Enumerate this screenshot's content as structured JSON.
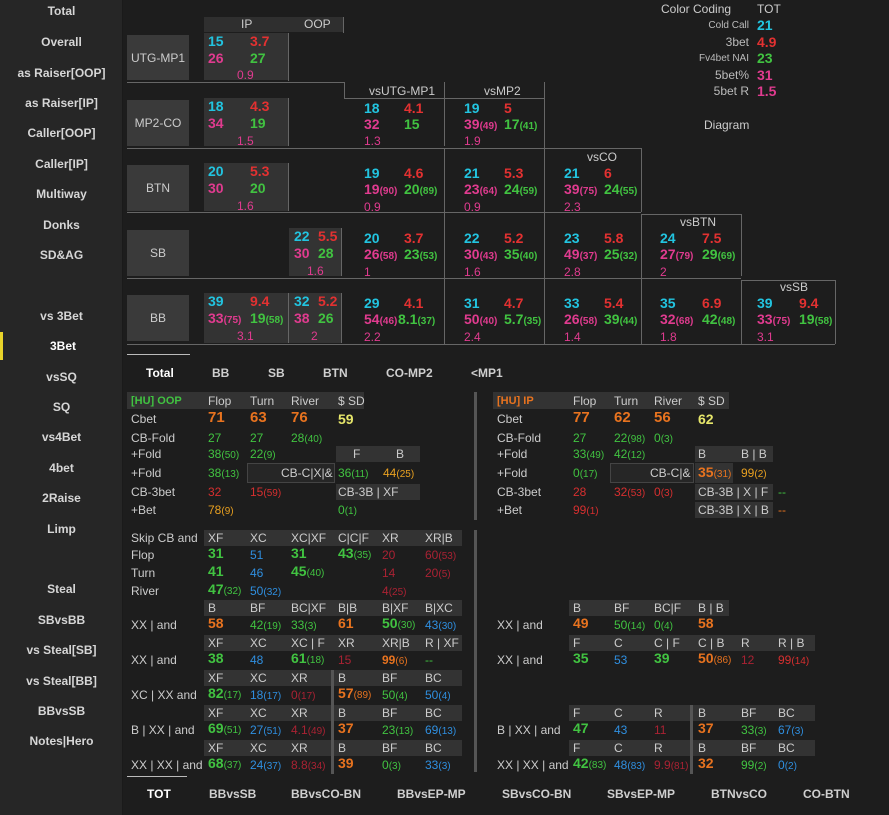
{
  "sidebar": {
    "items": [
      "Total",
      "Overall",
      "as Raiser[OOP]",
      "as Raiser[IP]",
      "Caller[OOP]",
      "Caller[IP]",
      "Multiway",
      "Donks",
      "SD&AG",
      "vs 3Bet",
      "3Bet",
      "vsSQ",
      "SQ",
      "vs4Bet",
      "4bet",
      "2Raise",
      "Limp",
      "Steal",
      "SBvsBB",
      "vs Steal[SB]",
      "vs Steal[BB]",
      "BBvsSB",
      "Notes|Hero"
    ]
  },
  "grid": {
    "ip": "IP",
    "oop": "OOP",
    "rows": [
      {
        "pos": "UTG-MP1",
        "a": "15",
        "b": "3.7",
        "c": "26",
        "d": "27",
        "e": "0.9"
      },
      {
        "pos": "MP2-CO",
        "a": "18",
        "b": "4.3",
        "c": "34",
        "d": "19",
        "e": "1.5"
      },
      {
        "pos": "BTN",
        "a": "20",
        "b": "5.3",
        "c": "30",
        "d": "20",
        "e": "1.6"
      },
      {
        "pos": "SB",
        "a": "22",
        "b": "5.5",
        "c": "30",
        "d": "28",
        "e": "1.6"
      },
      {
        "pos": "BB",
        "a": "39",
        "b": "9.4",
        "c": "33",
        "c2": "(75)",
        "d": "19",
        "d2": "(58)",
        "e": "3.1",
        "f": "32",
        "g": "5.2",
        "h": "38",
        "i": "26",
        "j": "2"
      }
    ],
    "vs_headers": [
      "vsUTG-MP1",
      "vsMP2",
      "vsCO",
      "vsBTN",
      "vsSB"
    ],
    "mp2co": [
      {
        "a": "18",
        "b": "4.1",
        "c": "32",
        "d": "15",
        "e": "1.3"
      },
      {
        "a": "19",
        "b": "5",
        "c": "39",
        "c2": "(49)",
        "d": "17",
        "d2": "(41)",
        "e": "1.9"
      }
    ],
    "btn": [
      {
        "a": "19",
        "b": "4.6",
        "c": "19",
        "c2": "(90)",
        "d": "20",
        "d2": "(89)",
        "e": "0.9"
      },
      {
        "a": "21",
        "b": "5.3",
        "c": "23",
        "c2": "(64)",
        "d": "24",
        "d2": "(59)",
        "e": "0.9"
      },
      {
        "a": "21",
        "b": "6",
        "c": "39",
        "c2": "(75)",
        "d": "24",
        "d2": "(55)",
        "e": "2.3"
      }
    ],
    "sb": [
      {
        "a": "20",
        "b": "3.7",
        "c": "26",
        "c2": "(58)",
        "d": "23",
        "d2": "(53)",
        "e": "1"
      },
      {
        "a": "22",
        "b": "5.2",
        "c": "30",
        "c2": "(43)",
        "d": "35",
        "d2": "(40)",
        "e": "1.6"
      },
      {
        "a": "23",
        "b": "5.8",
        "c": "49",
        "c2": "(37)",
        "d": "25",
        "d2": "(32)",
        "e": "2.8"
      },
      {
        "a": "24",
        "b": "7.5",
        "c": "27",
        "c2": "(79)",
        "d": "29",
        "d2": "(69)",
        "e": "2"
      }
    ],
    "bb": [
      {
        "a": "29",
        "b": "4.1",
        "c": "54",
        "c2": "(46)",
        "d": "8.1",
        "d2": "(37)",
        "e": "2.2"
      },
      {
        "a": "31",
        "b": "4.7",
        "c": "50",
        "c2": "(40)",
        "d": "5.7",
        "d2": "(35)",
        "e": "2.4"
      },
      {
        "a": "33",
        "b": "5.4",
        "c": "26",
        "c2": "(58)",
        "d": "39",
        "d2": "(44)",
        "e": "1.4"
      },
      {
        "a": "35",
        "b": "6.9",
        "c": "32",
        "c2": "(68)",
        "d": "42",
        "d2": "(48)",
        "e": "1.8"
      },
      {
        "a": "39",
        "b": "9.4",
        "c": "33",
        "c2": "(75)",
        "d": "19",
        "d2": "(58)",
        "e": "3.1"
      }
    ]
  },
  "legend": {
    "title": "Color Coding",
    "tot": "TOT",
    "items": [
      {
        "k": "Cold Call",
        "v": "21"
      },
      {
        "k": "3bet",
        "v": "4.9"
      },
      {
        "k": "Fv4bet NAI",
        "v": "23"
      },
      {
        "k": "5bet%",
        "v": "31"
      },
      {
        "k": "5bet R",
        "v": "1.5"
      }
    ],
    "diagram": "Diagram"
  },
  "tabs": [
    "Total",
    "BB",
    "SB",
    "BTN",
    "CO-MP2",
    "<MP1"
  ],
  "bottom_tabs": [
    "TOT",
    "BBvsSB",
    "BBvsCO-BN",
    "BBvsEP-MP",
    "SBvsCO-BN",
    "SBvsEP-MP",
    "BTNvsCO",
    "CO-BTN"
  ],
  "oop": {
    "title": "[HU] OOP",
    "h": [
      "Flop",
      "Turn",
      "River",
      "$ SD"
    ],
    "cbet": [
      "71",
      "63",
      "76",
      "59"
    ],
    "cbfold": [
      "27",
      "27",
      "28",
      "(40)"
    ],
    "pfold1": [
      "38",
      "(50)",
      "22",
      "(9)"
    ],
    "pfold2": [
      "38",
      "(13)"
    ],
    "fb": [
      "F",
      "B"
    ],
    "cbcx": "CB-C|X|&",
    "cbcxv": [
      "36",
      "(11)",
      "44",
      "(25)"
    ],
    "cb3bet": [
      "32",
      "15",
      "(59)"
    ],
    "cb3bxf": "CB-3B | XF",
    "bet": [
      "78",
      "(9)"
    ],
    "bxf": [
      "0",
      "(1)"
    ],
    "labels": [
      "Cbet",
      "CB-Fold",
      "+Fold",
      "+Fold",
      "CB-3bet",
      "+Bet"
    ]
  },
  "ip": {
    "title": "[HU] IP",
    "h": [
      "Flop",
      "Turn",
      "River",
      "$ SD"
    ],
    "cbet": [
      "77",
      "62",
      "56",
      "62"
    ],
    "cbfold": [
      "27",
      "22",
      "(98)",
      "0",
      "(3)"
    ],
    "pfold1": [
      "33",
      "(49)",
      "42",
      "(12)"
    ],
    "pfold2": [
      "0",
      "(17)"
    ],
    "bb": [
      "B",
      "B | B"
    ],
    "cbc": "CB-C|&",
    "cbcv": [
      "35",
      "(31)",
      "99",
      "(2)"
    ],
    "cb3bet": [
      "28",
      "32",
      "(53)",
      "0",
      "(3)"
    ],
    "cb3bxf": "CB-3B | X | F",
    "cb3bxb": "CB-3B | X | B",
    "dash1": "--",
    "dash2": "--",
    "bet": [
      "99",
      "(1)"
    ],
    "labels": [
      "Cbet",
      "CB-Fold",
      "+Fold",
      "+Fold",
      "CB-3bet",
      "+Bet"
    ]
  },
  "skip": {
    "label": "Skip CB and",
    "h": [
      "XF",
      "XC",
      "XC|XF",
      "C|C|F",
      "XR",
      "XR|B"
    ],
    "rows": [
      {
        "l": "Flop",
        "v": [
          "31",
          "51",
          "31",
          "43",
          "(35)",
          "20",
          "60",
          "(53)"
        ]
      },
      {
        "l": "Turn",
        "v": [
          "41",
          "46",
          "45",
          "(40)",
          "14",
          "20",
          "(5)"
        ]
      },
      {
        "l": "River",
        "v": [
          "47",
          "(32)",
          "50",
          "(32)",
          "4",
          "(25)"
        ]
      }
    ]
  },
  "xx1": {
    "label": "XX | and",
    "h": [
      "B",
      "BF",
      "BC|XF",
      "B|B",
      "B|XF",
      "B|XC"
    ],
    "v": [
      "58",
      "42",
      "(19)",
      "33",
      "(3)",
      "61",
      "50",
      "(30)",
      "43",
      "(30)"
    ]
  },
  "xx2": {
    "label": "XX | and",
    "h": [
      "XF",
      "XC",
      "XC | F",
      "XR",
      "XR|B",
      "R | XF"
    ],
    "v": [
      "38",
      "48",
      "61",
      "(18)",
      "15",
      "99",
      "(6)",
      "--"
    ]
  },
  "xc": {
    "label": "XC | XX and",
    "h": [
      "XF",
      "XC",
      "XR",
      "B",
      "BF",
      "BC"
    ],
    "v": [
      "82",
      "(17)",
      "18",
      "(17)",
      "0",
      "(17)",
      "57",
      "(89)",
      "50",
      "(4)",
      "50",
      "(4)"
    ]
  },
  "bxx": {
    "label": "B | XX | and",
    "h": [
      "XF",
      "XC",
      "XR",
      "B",
      "BF",
      "BC"
    ],
    "v": [
      "69",
      "(51)",
      "27",
      "(51)",
      "4.1",
      "(49)",
      "37",
      "23",
      "(13)",
      "69",
      "(13)"
    ]
  },
  "xxxx": {
    "label": "XX | XX | and",
    "h": [
      "XF",
      "XC",
      "XR",
      "B",
      "BF",
      "BC"
    ],
    "v": [
      "68",
      "(37)",
      "24",
      "(37)",
      "8.8",
      "(34)",
      "39",
      "0",
      "(3)",
      "33",
      "(3)"
    ]
  },
  "rxx1": {
    "label": "XX | and",
    "h": [
      "B",
      "BF",
      "BC|F",
      "B | B"
    ],
    "v": [
      "49",
      "50",
      "(14)",
      "0",
      "(4)",
      "58"
    ]
  },
  "rxx2": {
    "label": "XX | and",
    "h": [
      "F",
      "C",
      "C | F",
      "C | B",
      "R",
      "R | B"
    ],
    "v": [
      "35",
      "53",
      "39",
      "50",
      "(86)",
      "12",
      "99",
      "(14)"
    ]
  },
  "rbxx": {
    "label": "B | XX | and",
    "h": [
      "F",
      "C",
      "R",
      "B",
      "BF",
      "BC"
    ],
    "v": [
      "47",
      "43",
      "11",
      "37",
      "33",
      "(3)",
      "67",
      "(3)"
    ]
  },
  "rxxxx": {
    "label": "XX | XX | and",
    "h": [
      "F",
      "C",
      "R",
      "B",
      "BF",
      "BC"
    ],
    "v": [
      "42",
      "(83)",
      "48",
      "(83)",
      "9.9",
      "(81)",
      "32",
      "99",
      "(2)",
      "0",
      "(2)"
    ]
  }
}
